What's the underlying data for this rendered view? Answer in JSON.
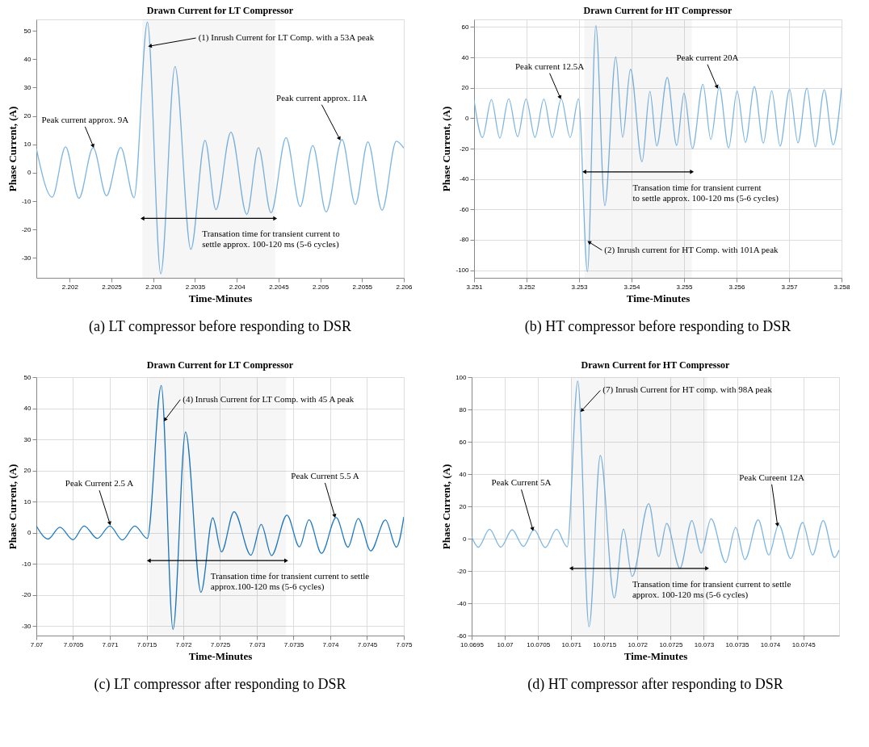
{
  "chart_data": [
    {
      "type": "line",
      "title": "Drawn Current for LT Compressor",
      "xlabel": "Time-Minutes",
      "ylabel": "Phase Current, (A)",
      "xlim": [
        2.2016,
        2.206
      ],
      "ylim": [
        -37,
        54
      ],
      "xticks": [
        2.202,
        2.2025,
        2.203,
        2.2035,
        2.204,
        2.2045,
        2.205,
        2.2055,
        2.206
      ],
      "yticks": [
        -30,
        -20,
        -10,
        0,
        10,
        20,
        30,
        40,
        50
      ],
      "grid": false,
      "x": [
        2.2016,
        2.20179,
        2.20195,
        2.20211,
        2.20228,
        2.20244,
        2.20261,
        2.20277,
        2.20293,
        2.20309,
        2.20326,
        2.20345,
        2.20362,
        2.20375,
        2.20393,
        2.20412,
        2.20426,
        2.20441,
        2.20459,
        2.20476,
        2.20491,
        2.20507,
        2.20526,
        2.20542,
        2.20557,
        2.20574,
        2.20591,
        2.206
      ],
      "series": [
        {
          "color": "#7db6e3",
          "values": [
            8.5,
            -8.6,
            9.1,
            -9,
            8.8,
            -8.1,
            8.9,
            -8.8,
            53,
            -35.6,
            37.4,
            -27,
            11.4,
            -13,
            14.3,
            -14.7,
            8.8,
            -14.1,
            12.4,
            -11.9,
            9.6,
            -13.8,
            11.7,
            -11.2,
            10.9,
            -13.2,
            11.1,
            8.7
          ]
        }
      ],
      "annotations": [
        {
          "text": "(1) Inrush Current for LT Comp. with a 53A peak",
          "x": 2.20296,
          "y": 44.6
        },
        {
          "text": "Peak current approx. 9A",
          "x": 2.20228,
          "y": 9.4
        },
        {
          "text": "Peak current approx. 11A",
          "x": 2.20523,
          "y": 12
        },
        "(a) LT compressor before responding to DSR"
      ],
      "bands": [
        {
          "axis": "x",
          "from": 2.20287,
          "to": 2.20446,
          "label": "Transation time for transient current to\nsettle approx. 100-120 ms (5-6 cycles)"
        }
      ]
    },
    {
      "type": "line",
      "title": "Drawn Current for HT Compressor",
      "xlabel": "Time-Minutes",
      "ylabel": "Phase Current, (A)",
      "xlim": [
        3.251,
        3.258
      ],
      "ylim": [
        -105,
        65
      ],
      "xticks": [
        3.251,
        3.252,
        3.253,
        3.254,
        3.255,
        3.256,
        3.257,
        3.258
      ],
      "yticks": [
        -100,
        -80,
        -60,
        -40,
        -20,
        0,
        20,
        40,
        60
      ],
      "grid": true,
      "x": [
        3.251,
        3.25116,
        3.25133,
        3.25149,
        3.25166,
        3.25183,
        3.25199,
        3.25216,
        3.25233,
        3.25249,
        3.25266,
        3.25283,
        3.25299,
        3.25316,
        3.25332,
        3.25349,
        3.2537,
        3.25383,
        3.25398,
        3.2542,
        3.25435,
        3.25448,
        3.25468,
        3.25486,
        3.255,
        3.25516,
        3.25536,
        3.25551,
        3.25567,
        3.25585,
        3.25601,
        3.25617,
        3.25634,
        3.25651,
        3.25667,
        3.25683,
        3.25701,
        3.25717,
        3.25734,
        3.2575,
        3.25767,
        3.25784,
        3.258
      ],
      "series": [
        {
          "color": "#7db6e3",
          "values": [
            11.9,
            -12.7,
            12.2,
            -13.1,
            12.7,
            -12.1,
            12.6,
            -12.6,
            12.6,
            -12.6,
            12.7,
            -12.6,
            12.7,
            -101,
            61,
            -57.5,
            40.3,
            -12.6,
            32.2,
            -28.6,
            17.7,
            -18.3,
            26.8,
            -17.9,
            16.4,
            -20,
            22.3,
            -14,
            20.5,
            -19.5,
            17.9,
            -15.9,
            20.8,
            -16.4,
            18,
            -18.3,
            19,
            -16.2,
            19.7,
            -18.7,
            18.7,
            -17.5,
            19.7
          ]
        }
      ],
      "annotations": [
        {
          "text": "Peak current 12.5A",
          "x": 3.25264,
          "y": 13.6
        },
        {
          "text": "Peak current 20A",
          "x": 3.25563,
          "y": 20.5
        },
        {
          "text": "(2) Inrush current for HT Comp. with 101A peak",
          "x": 3.25319,
          "y": -81.5
        },
        "(b) HT compressor before responding to DSR"
      ],
      "bands": [
        {
          "axis": "x",
          "from": 3.2531,
          "to": 3.25515,
          "label": "Transation time for transient current\nto settle approx. 100-120 ms (5-6 cycles)"
        }
      ]
    },
    {
      "type": "line",
      "title": "Drawn Current for LT Compressor",
      "xlabel": "Time-Minutes",
      "ylabel": "Phase Current, (A)",
      "xlim": [
        7.07,
        7.075
      ],
      "ylim": [
        -33,
        50
      ],
      "xticks": [
        7.07,
        7.0705,
        7.071,
        7.0715,
        7.072,
        7.0725,
        7.073,
        7.0735,
        7.074,
        7.0745,
        7.075
      ],
      "yticks": [
        -30,
        -20,
        -10,
        0,
        10,
        20,
        30,
        40,
        50
      ],
      "grid": true,
      "x": [
        7.07,
        7.07016,
        7.07032,
        7.0705,
        7.07065,
        7.07083,
        7.071,
        7.07117,
        7.07134,
        7.07151,
        7.0717,
        7.07186,
        7.07203,
        7.07224,
        7.0724,
        7.07252,
        7.07269,
        7.07292,
        7.07306,
        7.0732,
        7.07341,
        7.07358,
        7.07371,
        7.07388,
        7.07408,
        7.07424,
        7.07438,
        7.07455,
        7.07475,
        7.0749,
        7.075
      ],
      "series": [
        {
          "color": "#1f7ac4",
          "values": [
            2.2,
            -2,
            1.8,
            -2.2,
            2.2,
            -1.8,
            2.2,
            -2.3,
            2.2,
            -1.8,
            47.3,
            -31,
            32.4,
            -19.1,
            4.8,
            -6.1,
            6.8,
            -7.2,
            2.7,
            -7.3,
            5.7,
            -4.5,
            4.2,
            -6.6,
            4.9,
            -4.6,
            4.6,
            -5.8,
            4.1,
            -4.6,
            5.1
          ]
        }
      ],
      "annotations": [
        {
          "text": "(4) Inrush Current for LT Comp. with 45 A peak",
          "x": 7.07175,
          "y": 36.3
        },
        {
          "text": "Peak Current 2.5 A",
          "x": 7.071,
          "y": 3
        },
        {
          "text": "Peak Current 5.5 A",
          "x": 7.07406,
          "y": 5.4
        },
        "(c) LT compressor after responding to DSR"
      ],
      "bands": [
        {
          "axis": "x",
          "from": 7.07153,
          "to": 7.0734,
          "label": "Transation time for transient current to settle\napprox.100-120 ms (5-6 cycles)"
        }
      ]
    },
    {
      "type": "line",
      "title": "Drawn Current for HT Compressor",
      "xlabel": "Time-Minutes",
      "ylabel": "Phase Current, (A)",
      "xlim": [
        10.0695,
        10.07504
      ],
      "ylim": [
        -60,
        100
      ],
      "xticks": [
        10.0695,
        10.07,
        10.0705,
        10.071,
        10.0715,
        10.072,
        10.0725,
        10.073,
        10.0735,
        10.074,
        10.0745
      ],
      "yticks": [
        -60,
        -40,
        -20,
        0,
        20,
        40,
        60,
        80,
        100
      ],
      "grid": true,
      "x": [
        10.0695,
        10.0696,
        10.06977,
        10.06994,
        10.07011,
        10.07028,
        10.07044,
        10.07061,
        10.07078,
        10.07094,
        10.0711,
        10.07127,
        10.07144,
        10.07165,
        10.07179,
        10.07192,
        10.07217,
        10.07232,
        10.07244,
        10.07264,
        10.07282,
        10.07296,
        10.07311,
        10.07333,
        10.07348,
        10.07362,
        10.07382,
        10.07398,
        10.07413,
        10.07431,
        10.07449,
        10.07464,
        10.0748,
        10.07497,
        10.07504
      ],
      "series": [
        {
          "color": "#7db6e3",
          "values": [
            1.2,
            -5.3,
            5.8,
            -5.3,
            5.5,
            -4.8,
            5.6,
            -5.5,
            5.8,
            -5.1,
            97.5,
            -54.6,
            51.5,
            -36.7,
            5.9,
            -23.4,
            21.7,
            -11.1,
            9.4,
            -18.4,
            11.2,
            -8.9,
            12.3,
            -14.8,
            6.9,
            -12.9,
            11.7,
            -10.1,
            8.7,
            -12.3,
            10,
            -10.1,
            11.2,
            -11.7,
            -7
          ]
        }
      ],
      "annotations": [
        {
          "text": "(7) Inrush Current for HT comp. with 98A peak",
          "x": 10.07116,
          "y": 79.3
        },
        {
          "text": "Peak Current 5A",
          "x": 10.07042,
          "y": 5.9
        },
        {
          "text": "Peak Cureent 12A",
          "x": 10.07411,
          "y": 8.6
        },
        "(d) HT compressor after responding to DSR"
      ],
      "bands": [
        {
          "axis": "x",
          "from": 10.071,
          "to": 10.07305,
          "label": "Transation time for transient current to settle\napprox. 100-120 ms (5-6 cycles)"
        }
      ]
    }
  ]
}
